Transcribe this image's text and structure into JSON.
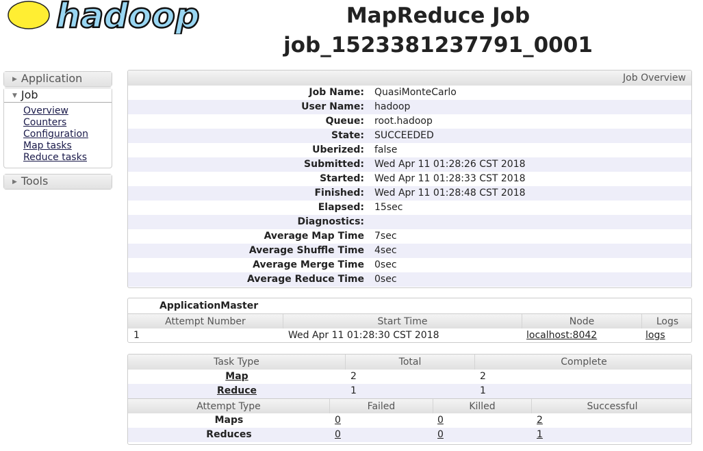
{
  "logo": {
    "text": "hadoop"
  },
  "title": {
    "line1": "MapReduce Job",
    "line2": "job_1523381237791_0001"
  },
  "sidebar": {
    "application": "Application",
    "job": "Job",
    "job_items": [
      "Overview",
      "Counters",
      "Configuration",
      "Map tasks",
      "Reduce tasks"
    ],
    "tools": "Tools"
  },
  "overview": {
    "header": "Job Overview",
    "rows": [
      {
        "label": "Job Name:",
        "value": "QuasiMonteCarlo"
      },
      {
        "label": "User Name:",
        "value": "hadoop"
      },
      {
        "label": "Queue:",
        "value": "root.hadoop"
      },
      {
        "label": "State:",
        "value": "SUCCEEDED"
      },
      {
        "label": "Uberized:",
        "value": "false"
      },
      {
        "label": "Submitted:",
        "value": "Wed Apr 11 01:28:26 CST 2018"
      },
      {
        "label": "Started:",
        "value": "Wed Apr 11 01:28:33 CST 2018"
      },
      {
        "label": "Finished:",
        "value": "Wed Apr 11 01:28:48 CST 2018"
      },
      {
        "label": "Elapsed:",
        "value": "15sec"
      },
      {
        "label": "Diagnostics:",
        "value": ""
      },
      {
        "label": "Average Map Time",
        "value": "7sec"
      },
      {
        "label": "Average Shuffle Time",
        "value": "4sec"
      },
      {
        "label": "Average Merge Time",
        "value": "0sec"
      },
      {
        "label": "Average Reduce Time",
        "value": "0sec"
      }
    ]
  },
  "am": {
    "title": "ApplicationMaster",
    "columns": [
      "Attempt Number",
      "Start Time",
      "Node",
      "Logs"
    ],
    "row": [
      "1",
      "Wed Apr 11 01:28:30 CST 2018",
      "localhost:8042",
      "logs"
    ]
  },
  "tasks": {
    "columns": [
      "Task Type",
      "Total",
      "Complete"
    ],
    "rows": [
      [
        "Map",
        "2",
        "2"
      ],
      [
        "Reduce",
        "1",
        "1"
      ]
    ],
    "attempt_columns": [
      "Attempt Type",
      "Failed",
      "Killed",
      "Successful"
    ],
    "attempt_rows": [
      [
        "Maps",
        "0",
        "0",
        "2"
      ],
      [
        "Reduces",
        "0",
        "0",
        "1"
      ]
    ]
  }
}
